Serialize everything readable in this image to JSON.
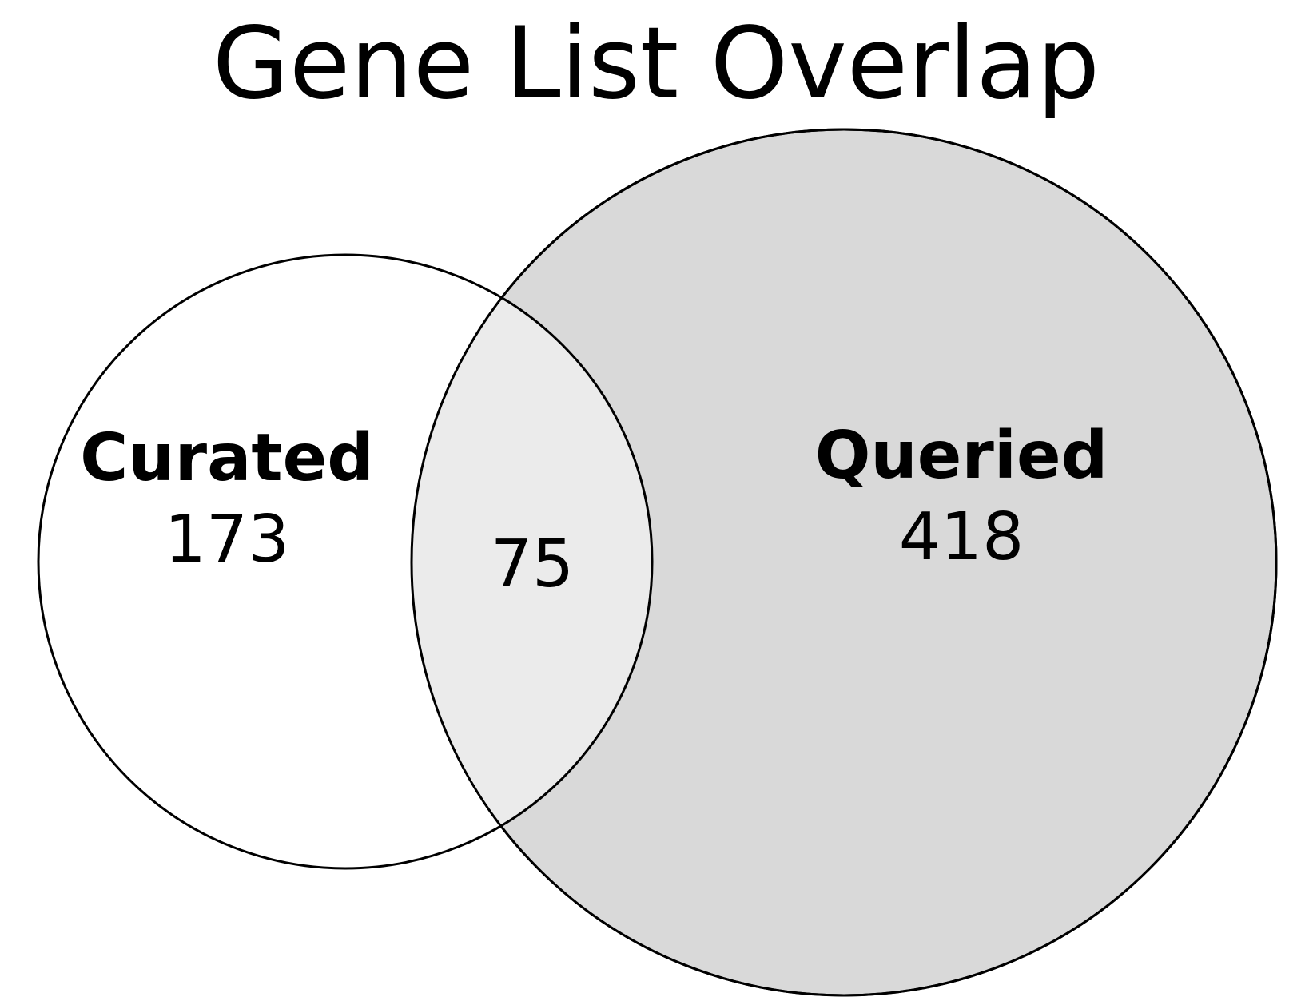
{
  "title": "Gene List Overlap",
  "sets": {
    "curated": {
      "label": "Curated",
      "only_count": "173",
      "fill_color": "#ffffff"
    },
    "queried": {
      "label": "Queried",
      "only_count": "418",
      "fill_color": "#d9d9d9"
    },
    "intersection": {
      "count": "75",
      "fill_color": "#ebebeb"
    }
  },
  "colors": {
    "outline": "#000000",
    "background": "#ffffff"
  }
}
